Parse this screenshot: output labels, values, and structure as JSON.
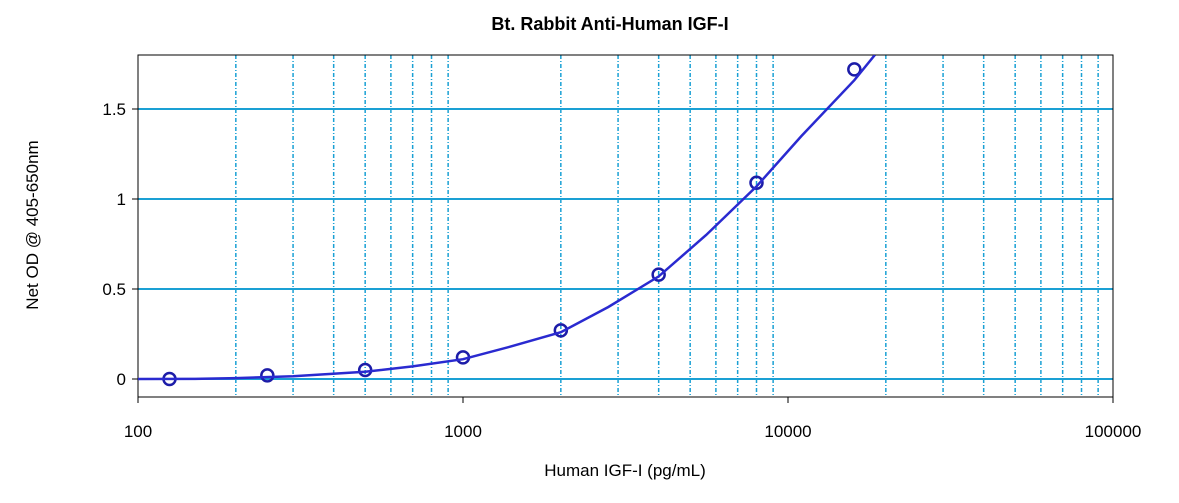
{
  "chart_data": {
    "type": "scatter",
    "title": "Bt. Rabbit Anti-Human IGF-I",
    "x_label": "Human IGF-I (pg/mL)",
    "y_label": "Net OD @ 405-650nm",
    "x_scale": "log",
    "xlim": [
      100,
      100000
    ],
    "ylim": [
      -0.1,
      1.8
    ],
    "xticks": [
      100,
      1000,
      10000,
      100000
    ],
    "xgrid": [
      200,
      300,
      400,
      500,
      600,
      700,
      800,
      900,
      2000,
      3000,
      4000,
      5000,
      6000,
      7000,
      8000,
      9000,
      20000,
      30000,
      40000,
      50000,
      60000,
      70000,
      80000,
      90000
    ],
    "yticks": [
      0,
      0.5,
      1,
      1.5
    ],
    "grid": true,
    "grid_color": "#1aa0d4",
    "series": [
      {
        "kind": "points",
        "color": "#1c1ca8",
        "x": [
          125,
          250,
          500,
          1000,
          2000,
          4000,
          8000,
          16000
        ],
        "values": [
          0,
          0.02,
          0.05,
          0.12,
          0.27,
          0.58,
          1.09,
          1.72
        ]
      },
      {
        "kind": "fit",
        "color": "#2a2ad0",
        "x": [
          100,
          150,
          200,
          300,
          500,
          700,
          1000,
          1400,
          2000,
          2800,
          4000,
          5600,
          8000,
          11000,
          16000,
          18500
        ],
        "values": [
          0,
          0.001,
          0.005,
          0.015,
          0.04,
          0.07,
          0.11,
          0.18,
          0.26,
          0.4,
          0.57,
          0.8,
          1.07,
          1.35,
          1.66,
          1.8
        ]
      }
    ]
  }
}
